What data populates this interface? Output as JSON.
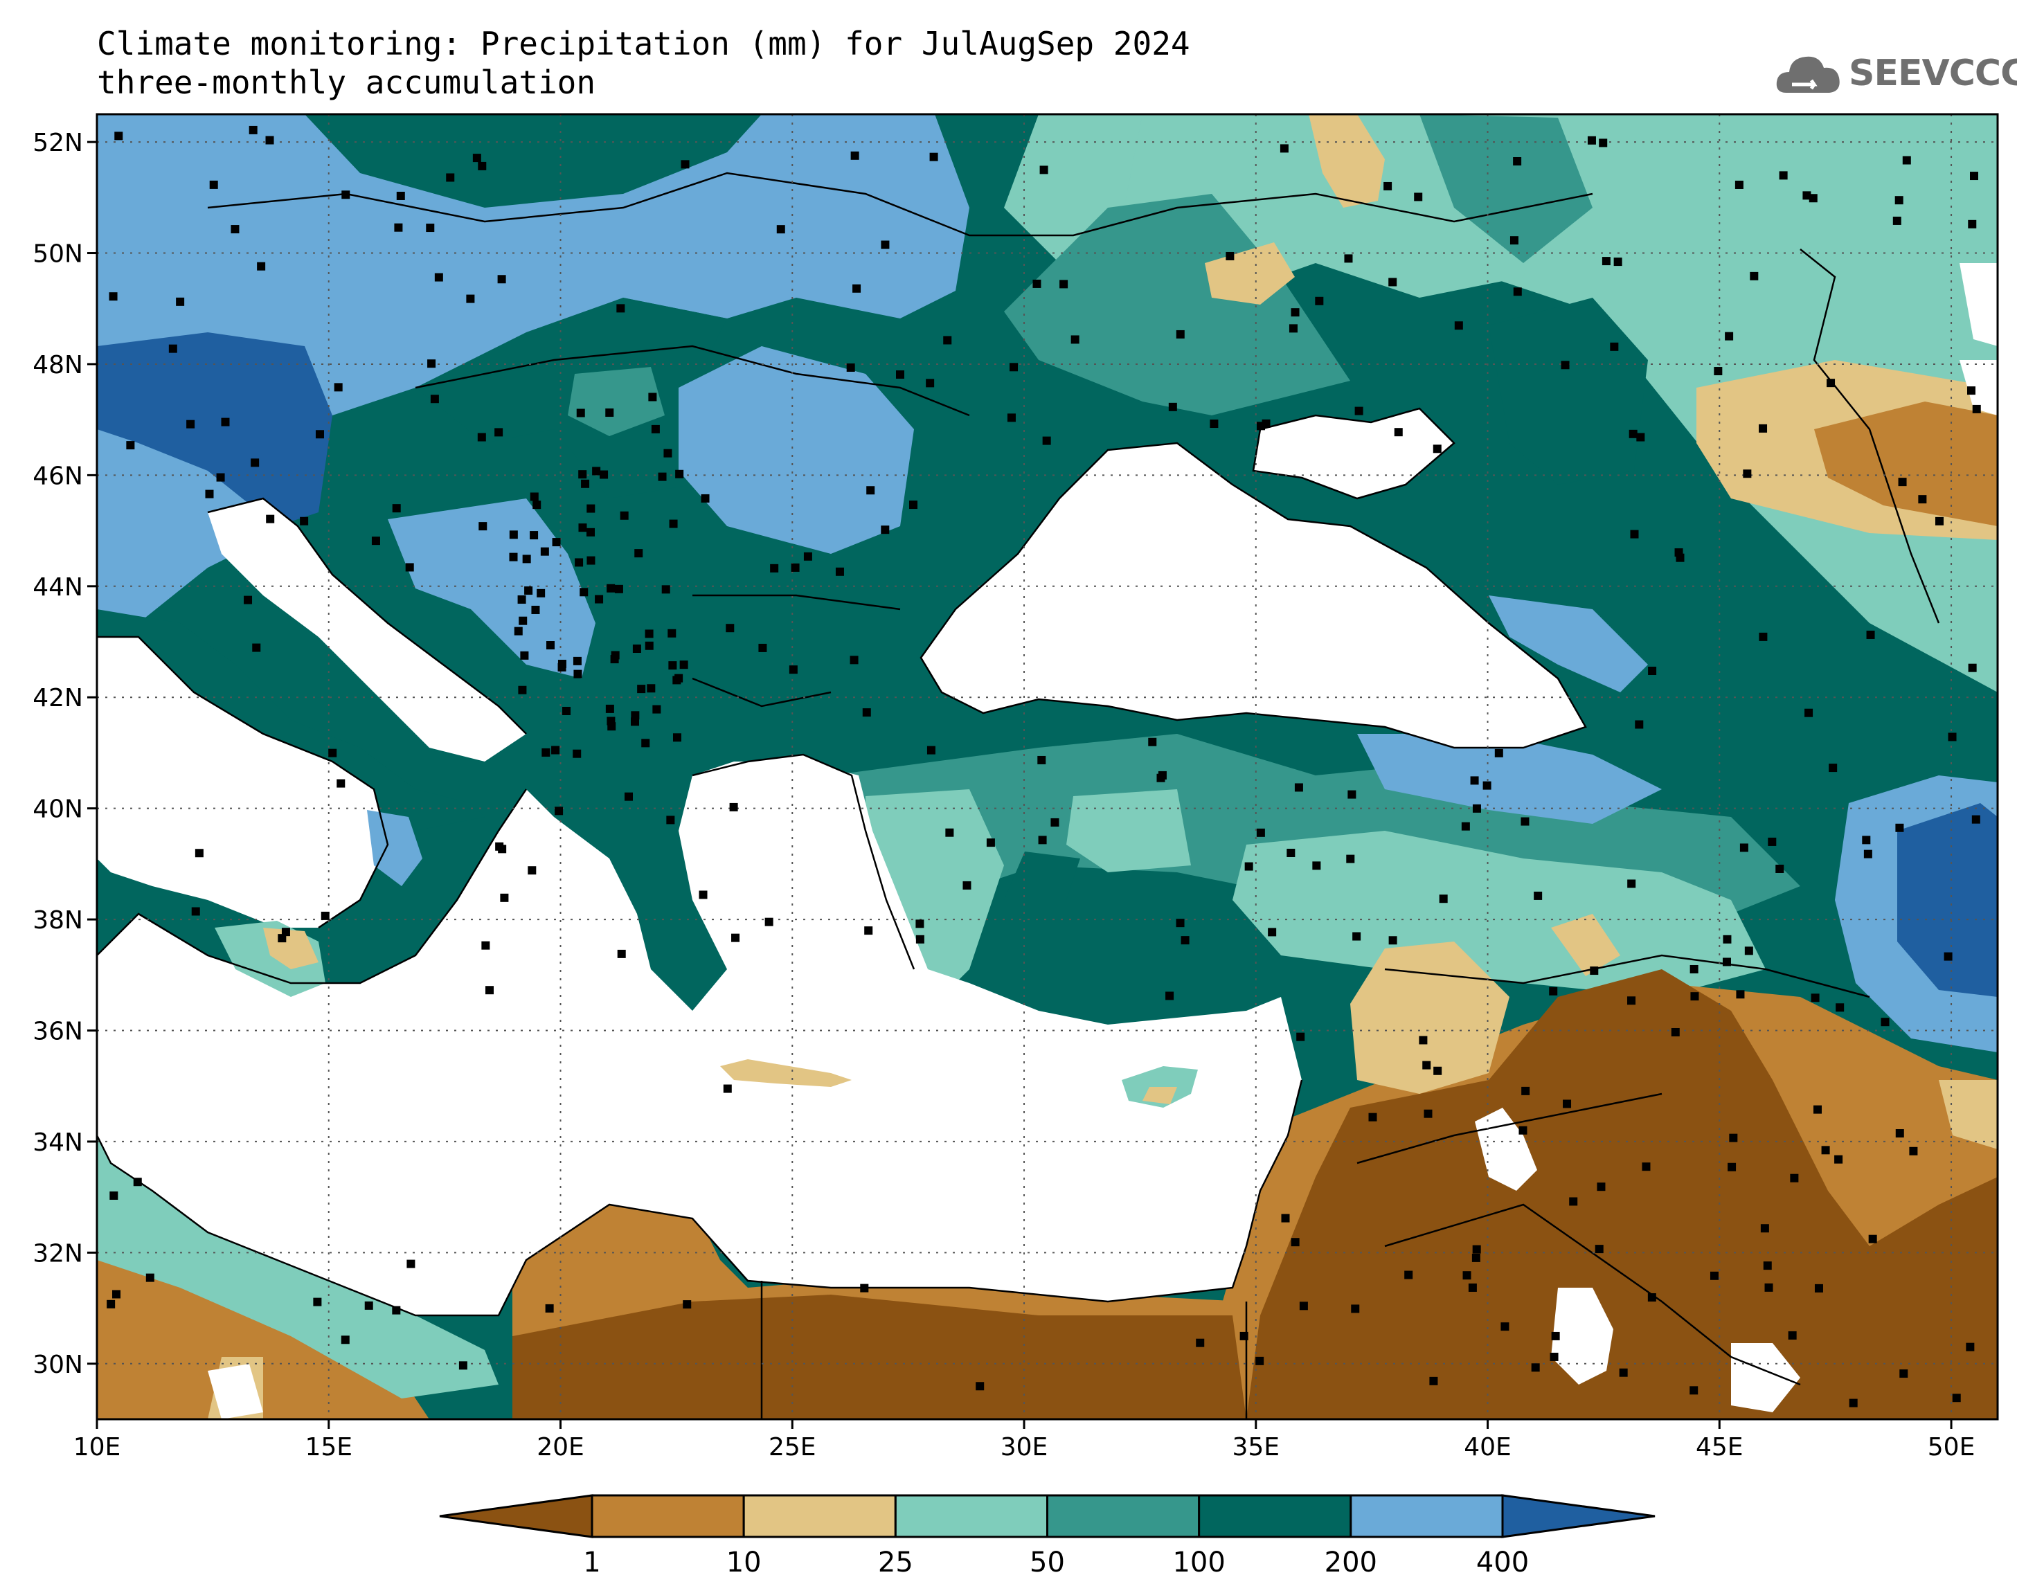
{
  "title": {
    "line1": "Climate monitoring: Precipitation (mm) for JulAugSep 2024",
    "line2": "three-monthly accumulation"
  },
  "logo": {
    "text": "SEEVCCC",
    "icon": "cloud-icon"
  },
  "map": {
    "lon_range": [
      10,
      51
    ],
    "lat_range": [
      29,
      52.5
    ],
    "lat_ticks": [
      "52N",
      "50N",
      "48N",
      "46N",
      "44N",
      "42N",
      "40N",
      "38N",
      "36N",
      "34N",
      "32N",
      "30N"
    ],
    "lon_ticks": [
      "10E",
      "15E",
      "20E",
      "25E",
      "30E",
      "35E",
      "40E",
      "45E",
      "50E"
    ],
    "grid": "dotted"
  },
  "colorbar": {
    "labels": [
      "1",
      "10",
      "25",
      "50",
      "100",
      "200",
      "400"
    ],
    "colors": [
      "#8b5212",
      "#bf8234",
      "#e2c584",
      "#7fcdbb",
      "#36978c",
      "#01665e",
      "#6aaad8",
      "#1f5fa0"
    ]
  },
  "colors": {
    "dark_brown": "#8b5212",
    "brown": "#bf8234",
    "tan": "#e2c584",
    "light_teal": "#7fcdbb",
    "teal": "#36978c",
    "dark_teal": "#01665e",
    "light_blue": "#6aaad8",
    "blue": "#1f5fa0"
  }
}
